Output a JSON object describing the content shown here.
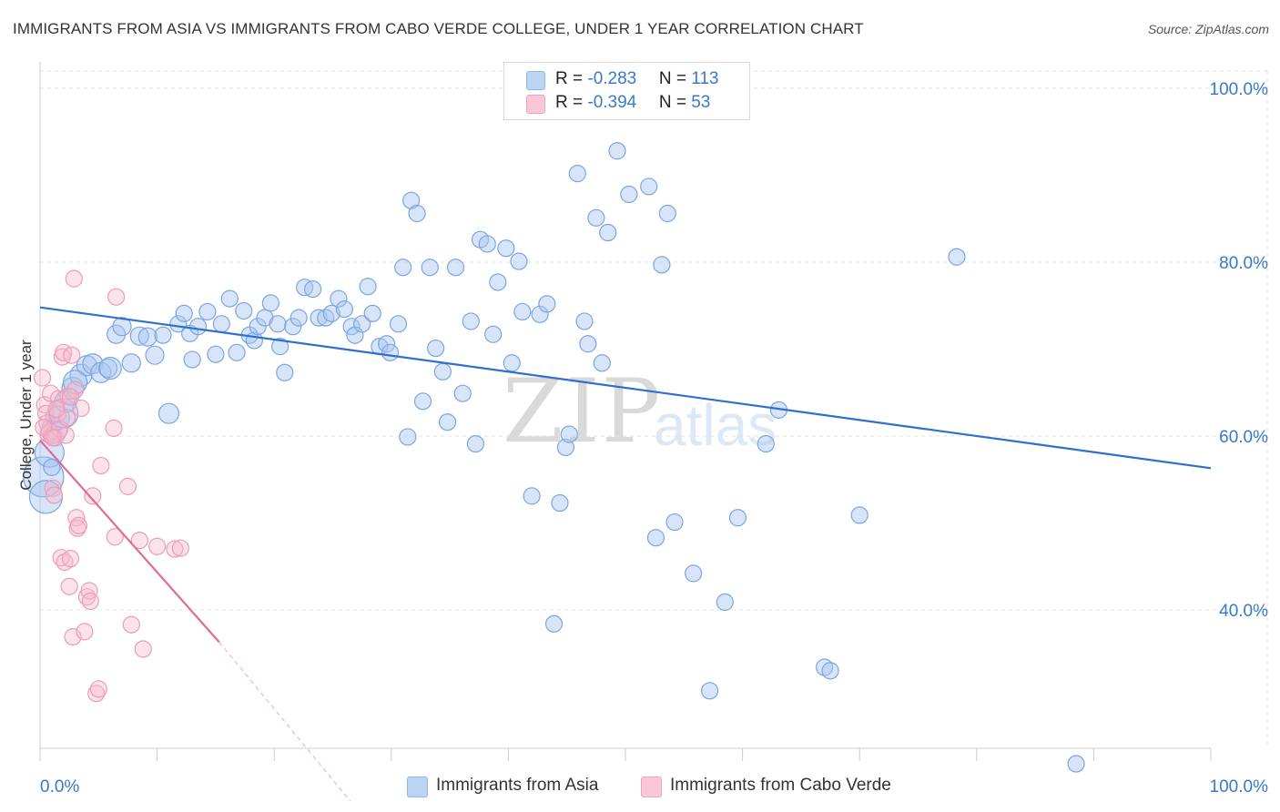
{
  "title": "IMMIGRANTS FROM ASIA VS IMMIGRANTS FROM CABO VERDE COLLEGE, UNDER 1 YEAR CORRELATION CHART",
  "source": "Source: ZipAtlas.com",
  "watermark": {
    "zip": "ZIP",
    "atlas": "atlas"
  },
  "legend": {
    "r_label": "R = ",
    "n_label": "N = ",
    "asia": {
      "r": "-0.283",
      "n": "113",
      "color": "#8fb6e8",
      "fill": "#bcd4f3"
    },
    "cabo": {
      "r": "-0.394",
      "n": "53",
      "color": "#f1a2bd",
      "fill": "#f8c8d8"
    }
  },
  "bottom_legend": {
    "asia": "Immigrants from Asia",
    "cabo": "Immigrants from Cabo Verde"
  },
  "chart_data": {
    "type": "scatter",
    "title": "IMMIGRANTS FROM ASIA VS IMMIGRANTS FROM CABO VERDE COLLEGE, UNDER 1 YEAR CORRELATION CHART",
    "ylabel": "College, Under 1 year",
    "xlabel": "",
    "x_tick_labels": [
      "0.0%",
      "100.0%"
    ],
    "y_tick_labels": [
      "100.0%",
      "80.0%",
      "60.0%",
      "40.0%"
    ],
    "xlim": [
      0,
      100
    ],
    "ylim": [
      18,
      100
    ],
    "grid": true,
    "series": [
      {
        "name": "Immigrants from Asia",
        "color": "#5b8fd6",
        "trend": {
          "x0": 0,
          "y0": 74.8,
          "x1": 100,
          "y1": 56.3
        },
        "points": [
          [
            0.3,
            55.3
          ],
          [
            0.5,
            53.0
          ],
          [
            0.8,
            58.1
          ],
          [
            1.2,
            60.7
          ],
          [
            1.5,
            62.1
          ],
          [
            2.2,
            64.0
          ],
          [
            2.8,
            65.5
          ],
          [
            3.5,
            67.0
          ],
          [
            4.0,
            68.1
          ],
          [
            4.5,
            68.3
          ],
          [
            5.2,
            67.3
          ],
          [
            5.8,
            67.8
          ],
          [
            6.5,
            71.7
          ],
          [
            7.0,
            72.6
          ],
          [
            7.8,
            68.4
          ],
          [
            8.5,
            71.5
          ],
          [
            9.2,
            71.4
          ],
          [
            9.8,
            69.3
          ],
          [
            10.5,
            71.6
          ],
          [
            11.0,
            62.6
          ],
          [
            11.8,
            72.9
          ],
          [
            12.3,
            74.1
          ],
          [
            12.8,
            71.8
          ],
          [
            13.0,
            68.8
          ],
          [
            13.5,
            72.6
          ],
          [
            14.3,
            74.3
          ],
          [
            15.0,
            69.4
          ],
          [
            15.5,
            72.9
          ],
          [
            16.2,
            75.8
          ],
          [
            16.8,
            69.6
          ],
          [
            17.4,
            74.4
          ],
          [
            17.9,
            71.6
          ],
          [
            18.3,
            71.0
          ],
          [
            18.6,
            72.6
          ],
          [
            19.2,
            73.6
          ],
          [
            19.7,
            75.3
          ],
          [
            20.3,
            72.9
          ],
          [
            20.5,
            70.3
          ],
          [
            20.9,
            67.3
          ],
          [
            21.6,
            72.6
          ],
          [
            22.1,
            73.6
          ],
          [
            22.6,
            77.1
          ],
          [
            23.3,
            76.9
          ],
          [
            23.8,
            73.6
          ],
          [
            24.4,
            73.6
          ],
          [
            24.9,
            74.1
          ],
          [
            25.5,
            75.8
          ],
          [
            26.0,
            74.6
          ],
          [
            26.6,
            72.6
          ],
          [
            26.9,
            71.6
          ],
          [
            27.5,
            72.9
          ],
          [
            28.0,
            77.2
          ],
          [
            28.4,
            74.1
          ],
          [
            29.0,
            70.3
          ],
          [
            29.6,
            70.6
          ],
          [
            29.9,
            69.6
          ],
          [
            30.6,
            72.9
          ],
          [
            31.0,
            79.4
          ],
          [
            31.4,
            59.9
          ],
          [
            31.7,
            87.1
          ],
          [
            32.2,
            85.6
          ],
          [
            32.7,
            64.0
          ],
          [
            33.3,
            79.4
          ],
          [
            33.8,
            70.1
          ],
          [
            34.4,
            67.4
          ],
          [
            34.8,
            61.6
          ],
          [
            35.5,
            79.4
          ],
          [
            36.1,
            64.9
          ],
          [
            36.8,
            73.2
          ],
          [
            37.2,
            59.1
          ],
          [
            37.6,
            82.6
          ],
          [
            38.2,
            82.1
          ],
          [
            38.7,
            71.7
          ],
          [
            39.1,
            77.7
          ],
          [
            39.8,
            81.6
          ],
          [
            40.3,
            68.4
          ],
          [
            40.9,
            80.1
          ],
          [
            41.2,
            74.3
          ],
          [
            42.0,
            53.1
          ],
          [
            42.7,
            74.0
          ],
          [
            43.3,
            75.2
          ],
          [
            43.9,
            38.4
          ],
          [
            44.4,
            52.3
          ],
          [
            44.9,
            58.7
          ],
          [
            45.2,
            60.2
          ],
          [
            45.9,
            90.2
          ],
          [
            46.5,
            73.2
          ],
          [
            46.8,
            70.6
          ],
          [
            47.5,
            85.1
          ],
          [
            48.0,
            68.4
          ],
          [
            48.5,
            83.4
          ],
          [
            49.3,
            92.8
          ],
          [
            50.3,
            87.8
          ],
          [
            52.0,
            88.7
          ],
          [
            52.6,
            48.3
          ],
          [
            53.1,
            79.7
          ],
          [
            53.6,
            85.6
          ],
          [
            54.2,
            50.1
          ],
          [
            55.8,
            44.2
          ],
          [
            57.2,
            30.7
          ],
          [
            58.5,
            40.9
          ],
          [
            59.6,
            50.6
          ],
          [
            62.0,
            59.1
          ],
          [
            63.1,
            63.0
          ],
          [
            67.0,
            33.4
          ],
          [
            67.5,
            33.0
          ],
          [
            70.0,
            50.9
          ],
          [
            78.3,
            80.6
          ],
          [
            88.5,
            22.3
          ],
          [
            1.0,
            56.4
          ],
          [
            2.0,
            62.6
          ],
          [
            3.0,
            66.2
          ],
          [
            6.0,
            67.8
          ]
        ],
        "radii": [
          22,
          18,
          16,
          14,
          13,
          12,
          12,
          12,
          11,
          11,
          11,
          10,
          10,
          10,
          10,
          10,
          10,
          10,
          9,
          11,
          9,
          9,
          9,
          9,
          9,
          9,
          9,
          9,
          9,
          9,
          9,
          9,
          9,
          9,
          9,
          9,
          9,
          9,
          9,
          9,
          9,
          9,
          9,
          9,
          9,
          9,
          9,
          9,
          9,
          9,
          9,
          9,
          9,
          9,
          9,
          9,
          9,
          9,
          9,
          9,
          9,
          9,
          9,
          9,
          9,
          9,
          9,
          9,
          9,
          9,
          9,
          9,
          9,
          9,
          9,
          9,
          9,
          9,
          9,
          9,
          9,
          9,
          9,
          9,
          9,
          9,
          9,
          9,
          9,
          9,
          9,
          9,
          9,
          9,
          9,
          9,
          9,
          9,
          9,
          9,
          9,
          9,
          9,
          9,
          9,
          9,
          9,
          9,
          9,
          9,
          16,
          13,
          12,
          11
        ]
      },
      {
        "name": "Immigrants from Cabo Verde",
        "color": "#e87399",
        "trend": {
          "x0": 0,
          "y0": 59.5,
          "x1": 15.3,
          "y1": 36.3,
          "dash_to_x": 26.5,
          "dash_to_y": 18.0
        },
        "points": [
          [
            0.2,
            66.7
          ],
          [
            0.4,
            63.6
          ],
          [
            0.5,
            62.6
          ],
          [
            0.6,
            61.5
          ],
          [
            0.7,
            60.2
          ],
          [
            0.8,
            60.5
          ],
          [
            0.9,
            64.9
          ],
          [
            1.0,
            60.0
          ],
          [
            1.1,
            54.0
          ],
          [
            1.2,
            53.2
          ],
          [
            1.3,
            59.8
          ],
          [
            1.5,
            62.5
          ],
          [
            1.6,
            64.3
          ],
          [
            1.7,
            60.8
          ],
          [
            1.8,
            46.0
          ],
          [
            1.9,
            69.1
          ],
          [
            2.0,
            69.6
          ],
          [
            2.1,
            45.5
          ],
          [
            2.2,
            60.1
          ],
          [
            2.3,
            62.1
          ],
          [
            2.4,
            64.6
          ],
          [
            2.5,
            42.7
          ],
          [
            2.6,
            45.9
          ],
          [
            2.7,
            69.3
          ],
          [
            2.8,
            36.9
          ],
          [
            2.9,
            78.1
          ],
          [
            3.0,
            65.3
          ],
          [
            3.1,
            50.6
          ],
          [
            3.2,
            49.4
          ],
          [
            3.3,
            49.7
          ],
          [
            3.5,
            63.2
          ],
          [
            3.8,
            37.5
          ],
          [
            4.0,
            41.5
          ],
          [
            4.2,
            42.2
          ],
          [
            4.3,
            41.0
          ],
          [
            4.5,
            53.1
          ],
          [
            4.8,
            30.4
          ],
          [
            5.0,
            30.9
          ],
          [
            5.2,
            56.6
          ],
          [
            6.3,
            60.9
          ],
          [
            6.4,
            48.4
          ],
          [
            6.5,
            76.0
          ],
          [
            7.5,
            54.2
          ],
          [
            7.8,
            38.3
          ],
          [
            8.5,
            48.0
          ],
          [
            8.8,
            35.5
          ],
          [
            10.0,
            47.3
          ],
          [
            11.5,
            47.0
          ],
          [
            12.0,
            47.1
          ],
          [
            1.4,
            63.1
          ],
          [
            0.3,
            61.0
          ],
          [
            2.6,
            64.5
          ],
          [
            1.1,
            59.8
          ]
        ],
        "radii": [
          9,
          9,
          9,
          9,
          9,
          9,
          9,
          9,
          9,
          9,
          9,
          9,
          9,
          9,
          9,
          9,
          9,
          9,
          9,
          9,
          9,
          9,
          9,
          9,
          9,
          9,
          9,
          9,
          9,
          9,
          9,
          9,
          9,
          9,
          9,
          9,
          9,
          9,
          9,
          9,
          9,
          9,
          9,
          9,
          9,
          9,
          9,
          9,
          9,
          9,
          9,
          9,
          9
        ]
      }
    ]
  }
}
